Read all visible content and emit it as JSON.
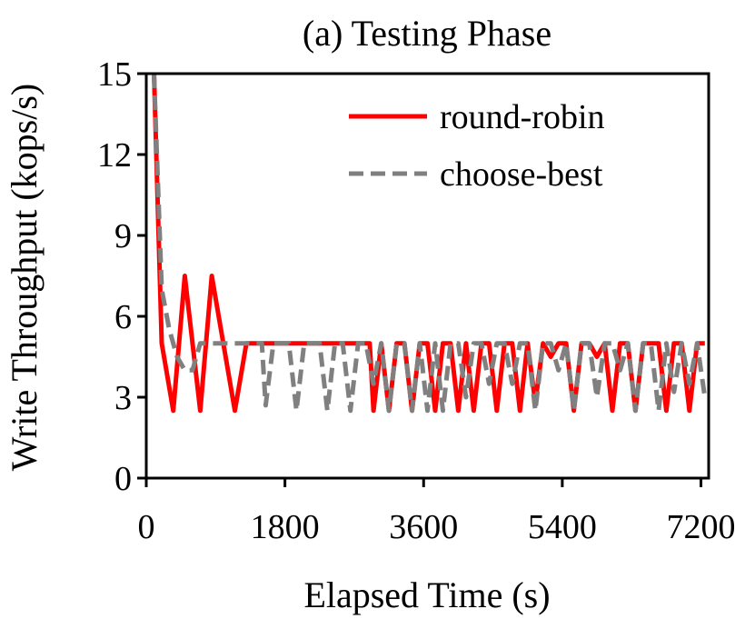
{
  "chart_data": {
    "type": "line",
    "title": "(a) Testing Phase",
    "xlabel": "Elapsed Time (s)",
    "ylabel": "Write Throughput (kops/s)",
    "xlim": [
      0,
      7300
    ],
    "ylim": [
      0,
      15
    ],
    "xticks": [
      0,
      1800,
      3600,
      5400,
      7200
    ],
    "xtick_labels": [
      "0",
      "1800",
      "3600",
      "5400",
      "7200"
    ],
    "yticks": [
      0,
      3,
      6,
      9,
      12,
      15
    ],
    "ytick_labels": [
      "0",
      "3",
      "6",
      "9",
      "12",
      "15"
    ],
    "grid": false,
    "legend_position": "top-right",
    "series": [
      {
        "name": "round-robin",
        "color": "#ff0000",
        "style": "solid",
        "x": [
          100,
          200,
          350,
          500,
          700,
          850,
          1000,
          1150,
          1300,
          1500,
          1700,
          1900,
          2100,
          2300,
          2500,
          2700,
          2900,
          2950,
          3050,
          3150,
          3250,
          3350,
          3450,
          3550,
          3650,
          3750,
          3850,
          3950,
          4050,
          4150,
          4250,
          4350,
          4450,
          4550,
          4650,
          4750,
          4850,
          4950,
          5050,
          5150,
          5250,
          5350,
          5450,
          5550,
          5650,
          5750,
          5850,
          5950,
          6050,
          6150,
          6250,
          6350,
          6450,
          6550,
          6650,
          6750,
          6850,
          6950,
          7050,
          7150,
          7250
        ],
        "values": [
          15,
          5,
          2.5,
          7.5,
          2.5,
          7.5,
          5,
          2.5,
          5,
          5,
          5,
          5,
          5,
          5,
          5,
          5,
          5,
          2.5,
          5,
          2.5,
          5,
          5,
          2.5,
          5,
          5,
          2.5,
          5,
          5,
          2.5,
          5,
          2.5,
          5,
          5,
          2.5,
          5,
          5,
          2.5,
          5,
          2.8,
          5,
          4.5,
          5,
          5,
          2.5,
          5,
          5,
          4.5,
          5,
          2.5,
          5,
          5,
          2.5,
          5,
          5,
          5,
          2.5,
          5,
          5,
          2.5,
          5,
          5
        ]
      },
      {
        "name": "choose-best",
        "color": "#808080",
        "style": "dashed",
        "x": [
          100,
          200,
          300,
          400,
          500,
          600,
          700,
          900,
          1200,
          1300,
          1400,
          1500,
          1550,
          1650,
          1750,
          1850,
          1950,
          2050,
          2150,
          2250,
          2350,
          2450,
          2550,
          2650,
          2750,
          2850,
          2950,
          3050,
          3150,
          3250,
          3350,
          3450,
          3550,
          3650,
          3750,
          3850,
          3950,
          4050,
          4150,
          4250,
          4350,
          4450,
          4550,
          4650,
          4750,
          4850,
          4950,
          5050,
          5150,
          5250,
          5350,
          5450,
          5550,
          5650,
          5750,
          5850,
          5950,
          6050,
          6150,
          6250,
          6350,
          6450,
          6550,
          6650,
          6750,
          6850,
          6950,
          7050,
          7150,
          7250
        ],
        "values": [
          15,
          7,
          5.5,
          4.5,
          4,
          4,
          5,
          5,
          5,
          5,
          5,
          5,
          2.7,
          5,
          5,
          5,
          2.5,
          5,
          5,
          5,
          2.5,
          5,
          5,
          2.5,
          5,
          5,
          3.5,
          5,
          2.5,
          5,
          5,
          2.5,
          5,
          2.5,
          5,
          2.5,
          5,
          5,
          3,
          5,
          5,
          3.5,
          5,
          5,
          3.5,
          5,
          5,
          2.5,
          5,
          5,
          4,
          5,
          2.5,
          5,
          5,
          3,
          5,
          5,
          4,
          5,
          2.5,
          5,
          5,
          2.5,
          5,
          3.2,
          5,
          3.5,
          5,
          3
        ]
      }
    ]
  }
}
